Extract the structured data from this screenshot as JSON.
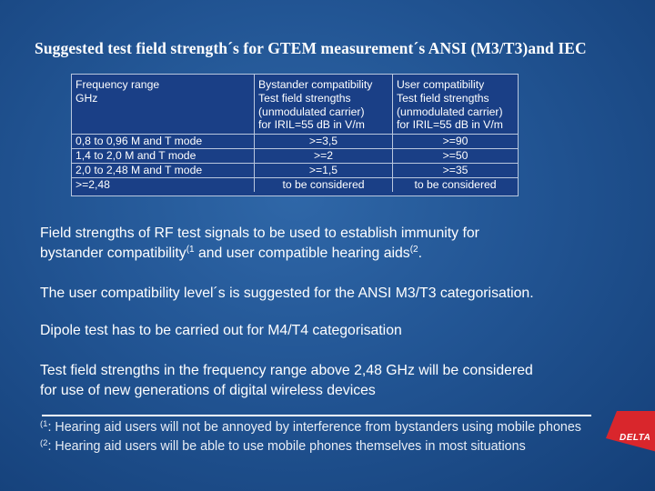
{
  "title": "Suggested test field strength´s for GTEM measurement´s ANSI (M3/T3)and IEC",
  "table": {
    "headers": [
      [
        "Frequency range",
        "GHz"
      ],
      [
        "Bystander compatibility",
        "Test field strengths",
        "(unmodulated carrier)",
        "for IRIL=55 dB in V/m"
      ],
      [
        "User compatibility",
        "Test field strengths",
        "(unmodulated carrier)",
        "for IRIL=55 dB in V/m"
      ]
    ],
    "rows": [
      [
        "0,8 to 0,96 M and T mode",
        ">=3,5",
        ">=90"
      ],
      [
        "1,4 to 2,0 M and T mode",
        ">=2",
        ">=50"
      ],
      [
        "2,0 to 2,48 M and T mode",
        ">=1,5",
        ">=35"
      ],
      [
        ">=2,48",
        "to be considered",
        "to be considered"
      ]
    ]
  },
  "paragraphs": {
    "p1_line1": "Field strengths of RF test signals to be used to establish immunity for",
    "p1_line2_a": "bystander compatibility",
    "p1_sup1": "(1",
    "p1_line2_b": " and user compatible hearing aids",
    "p1_sup2": "(2",
    "p1_line2_c": ".",
    "p2": "The user compatibility level´s is suggested for the ANSI M3/T3 categorisation.",
    "p3": "Dipole test has to be carried out for M4/T4 categorisation",
    "p4_line1": "Test field strengths in the frequency range above 2,48 GHz will be considered",
    "p4_line2": "for use of new generations of digital wireless devices"
  },
  "footnotes": {
    "f1_mark": "(1",
    "f1_text": ": Hearing aid users will not be annoyed by interference from bystanders using mobile phones",
    "f2_mark": "(2",
    "f2_text": ": Hearing aid users will be able to use mobile phones themselves in most situations"
  },
  "logo": {
    "text": "DELTA",
    "color": "#d9262c"
  }
}
